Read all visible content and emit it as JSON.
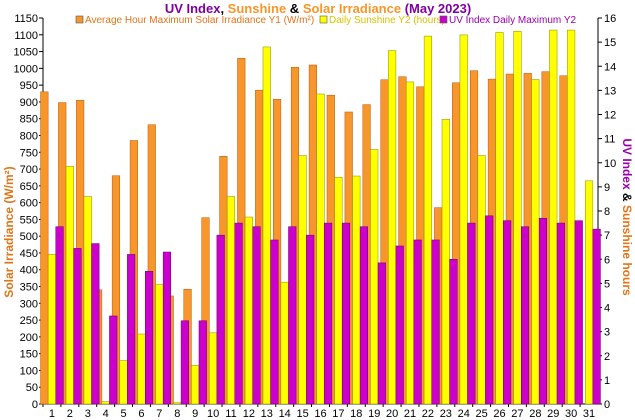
{
  "chart_data": {
    "type": "bar",
    "title": {
      "prefix": "",
      "part1": "UV Index",
      "sep1": ", ",
      "part2": "Sunshine",
      "sep2": " & ",
      "part3": "Solar Irradiance",
      "suffix": " (May 2023)"
    },
    "ylabel_left": "Solar Irradiance (W/m²)",
    "ylabel_right_a": "UV Index",
    "ylabel_right_b": " & ",
    "ylabel_right_c": "Sunshine hours",
    "legend": [
      {
        "label": "Average Hour Maximum Solar Irradiance Y1 (W/m²)",
        "color": "#f7962b"
      },
      {
        "label": "Daily Sunshine Y2 (hours)",
        "color": "#ffff00"
      },
      {
        "label": "UV Index Daily Maximum Y2",
        "color": "#cc00cc"
      }
    ],
    "categories": [
      "1",
      "2",
      "3",
      "4",
      "5",
      "6",
      "7",
      "8",
      "9",
      "10",
      "11",
      "12",
      "13",
      "14",
      "15",
      "16",
      "17",
      "18",
      "19",
      "20",
      "21",
      "22",
      "23",
      "24",
      "25",
      "26",
      "27",
      "28",
      "29",
      "30",
      "31"
    ],
    "y1_range": [
      0,
      1150
    ],
    "y1_ticks": [
      0,
      50,
      100,
      150,
      200,
      250,
      300,
      350,
      400,
      450,
      500,
      550,
      600,
      650,
      700,
      750,
      800,
      850,
      900,
      950,
      1000,
      1050,
      1100,
      1150
    ],
    "y2_range": [
      0,
      16
    ],
    "y2_ticks": [
      0,
      1,
      2,
      3,
      4,
      5,
      6,
      7,
      8,
      9,
      10,
      11,
      12,
      13,
      14,
      15,
      16
    ],
    "series": [
      {
        "name": "Average Hour Maximum Solar Irradiance Y1 (W/m²)",
        "axis": "left",
        "color": "#f7962b",
        "values": [
          930,
          898,
          905,
          340,
          680,
          785,
          832,
          322,
          342,
          555,
          738,
          1030,
          935,
          908,
          1003,
          1010,
          920,
          870,
          892,
          966,
          975,
          945,
          585,
          957,
          993,
          968,
          983,
          985,
          990,
          978,
          null
        ]
      },
      {
        "name": "Daily Sunshine Y2 (hours)",
        "axis": "right",
        "color": "#ffff00",
        "values": [
          6.2,
          9.85,
          8.6,
          0.1,
          1.8,
          2.9,
          4.95,
          0.05,
          1.6,
          2.95,
          8.6,
          7.75,
          14.8,
          5.05,
          10.3,
          12.85,
          9.4,
          9.45,
          10.55,
          14.65,
          13.35,
          15.25,
          11.8,
          15.3,
          10.3,
          15.4,
          15.45,
          13.45,
          15.5,
          15.5,
          9.25
        ]
      },
      {
        "name": "UV Index Daily Maximum Y2",
        "axis": "right",
        "color": "#cc00cc",
        "values": [
          7.35,
          6.45,
          6.65,
          3.65,
          6.2,
          5.5,
          6.3,
          3.45,
          3.45,
          7.0,
          7.5,
          7.35,
          6.8,
          7.35,
          7.0,
          7.5,
          7.5,
          7.35,
          5.85,
          6.55,
          6.8,
          6.8,
          6.0,
          7.5,
          7.8,
          7.6,
          7.35,
          7.7,
          7.5,
          7.6,
          7.25
        ]
      }
    ],
    "grid": false
  }
}
